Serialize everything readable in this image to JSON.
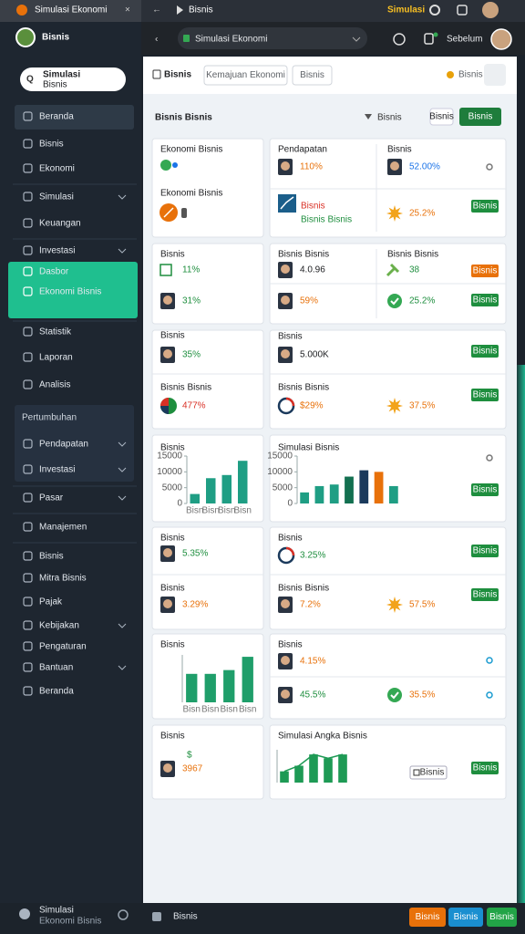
{
  "browser": {
    "tab": "Simulasi Ekonomi",
    "tab2": "Bisnis",
    "badge": "Simulasi",
    "address": "Simulasi Ekonomi",
    "account": "Sebelum"
  },
  "sidebar": {
    "brand": "Bisnis",
    "search": [
      "Simulasi",
      "Bisnis"
    ],
    "items": [
      "Beranda",
      "Bisnis",
      "Ekonomi",
      "Simulasi",
      "Keuangan",
      "Investasi",
      "Dasbor",
      "Ekonomi Bisnis",
      "Statistik",
      "Laporan",
      "Analisis",
      "Pertumbuhan",
      "Pendapatan",
      "Investasi",
      "Pasar",
      "Manajemen",
      "Bisnis",
      "Mitra Bisnis",
      "Pajak",
      "Kebijakan",
      "Pengaturan",
      "Bantuan",
      "Beranda"
    ],
    "user": "Simulasi",
    "user_sub": "Ekonomi Bisnis"
  },
  "toolbar": {
    "title": "Bisnis",
    "tabs": [
      "Kemajuan Ekonomi",
      "Bisnis"
    ],
    "status": "Bisnis"
  },
  "header": {
    "title": "Bisnis Bisnis",
    "filter": "Bisnis",
    "actions": [
      "Bisnis",
      "Bisnis"
    ]
  },
  "cards": [
    {
      "labels": [
        {
          "text": "Ekonomi Bisnis"
        },
        {
          "text": "Ekonomi Bisnis"
        }
      ]
    },
    {
      "labels": [
        {
          "text": "Pendapatan"
        },
        {
          "text": "Bisnis"
        },
        {
          "text": "Bisnis",
          "color": "#d93025"
        },
        {
          "text": "Bisnis Bisnis",
          "color": "#1e8e3e"
        }
      ],
      "stats": [
        {
          "value": "110%",
          "color": "#e8710a"
        },
        {
          "value": "52.00%",
          "color": "#1a73e8"
        },
        {
          "value": "25.2%",
          "color": "#e8710a"
        }
      ],
      "buttons": [
        {
          "label": "Bisnis",
          "color": "#1e8e3e"
        }
      ]
    },
    {
      "labels": [
        {
          "text": "Bisnis"
        }
      ],
      "stats": [
        {
          "value": "11%",
          "color": "#1e8e3e"
        },
        {
          "value": "31%",
          "color": "#1e8e3e"
        }
      ]
    },
    {
      "labels": [
        {
          "text": "Bisnis Bisnis"
        },
        {
          "text": "Bisnis Bisnis"
        }
      ],
      "stats": [
        {
          "value": "4.0.96",
          "color": "#202124"
        },
        {
          "value": "38",
          "color": "#1e8e3e"
        },
        {
          "value": "59%",
          "color": "#e8710a"
        },
        {
          "value": "25.2%",
          "color": "#1e8e3e"
        }
      ],
      "buttons": [
        {
          "label": "Bisnis",
          "color": "#e8710a"
        },
        {
          "label": "Bisnis",
          "color": "#1e8e3e"
        }
      ]
    },
    {
      "labels": [
        {
          "text": "Bisnis"
        },
        {
          "text": "Bisnis Bisnis"
        }
      ],
      "stats": [
        {
          "value": "35%",
          "color": "#1e8e3e"
        },
        {
          "value": "477%",
          "color": "#d93025"
        }
      ]
    },
    {
      "labels": [
        {
          "text": "Bisnis"
        },
        {
          "text": "Bisnis Bisnis"
        }
      ],
      "stats": [
        {
          "value": "5.000K",
          "color": "#202124"
        },
        {
          "value": "$29%",
          "color": "#e8710a"
        },
        {
          "value": "37.5%",
          "color": "#e8710a"
        }
      ],
      "buttons": [
        {
          "label": "Bisnis",
          "color": "#1e8e3e"
        },
        {
          "label": "Bisnis",
          "color": "#1e8e3e"
        }
      ]
    },
    {
      "labels": [
        {
          "text": "Bisnis"
        }
      ],
      "chart": {
        "type": "bar",
        "categories": [
          "Bisn",
          "Bisn",
          "Bisn",
          "Bisn"
        ],
        "values": [
          3000,
          8000,
          9000,
          13500
        ],
        "color": "#1f9e84",
        "ylim": [
          0,
          15000
        ],
        "yticks": [
          0,
          5000,
          10000,
          15000
        ]
      }
    },
    {
      "labels": [
        {
          "text": "Simulasi Bisnis"
        }
      ],
      "chart": {
        "type": "bar",
        "values": [
          3500,
          5500,
          6000,
          8500,
          10500,
          10000,
          5500
        ],
        "colors": [
          "#1f9e84",
          "#1f9e84",
          "#1f9e84",
          "#137050",
          "#1b3a5c",
          "#e8710a",
          "#1f9e84"
        ],
        "ylim": [
          0,
          15000
        ],
        "yticks": [
          0,
          5000,
          10000,
          15000
        ]
      },
      "buttons": [
        {
          "label": "Bisnis",
          "color": "#1e8e3e"
        }
      ]
    },
    {
      "labels": [
        {
          "text": "Bisnis"
        },
        {
          "text": "Bisnis"
        }
      ],
      "stats": [
        {
          "value": "5.35%",
          "color": "#1e8e3e"
        },
        {
          "value": "3.29%",
          "color": "#e8710a"
        }
      ]
    },
    {
      "labels": [
        {
          "text": "Bisnis"
        },
        {
          "text": "Bisnis Bisnis"
        }
      ],
      "stats": [
        {
          "value": "3.25%",
          "color": "#1e8e3e"
        },
        {
          "value": "7.2%",
          "color": "#e8710a"
        },
        {
          "value": "57.5%",
          "color": "#e8710a"
        }
      ],
      "buttons": [
        {
          "label": "Bisnis",
          "color": "#1e8e3e"
        },
        {
          "label": "Bisnis",
          "color": "#1e8e3e"
        }
      ]
    },
    {
      "labels": [
        {
          "text": "Bisnis"
        }
      ],
      "chart": {
        "type": "bar",
        "categories": [
          "Bisn",
          "Bisn",
          "Bisn",
          "Bisn"
        ],
        "values": [
          30,
          30,
          34,
          48
        ],
        "color": "#1f9e6a",
        "ylim": [
          0,
          50
        ]
      }
    },
    {
      "labels": [
        {
          "text": "Bisnis"
        }
      ],
      "stats": [
        {
          "value": "4.15%",
          "color": "#e8710a"
        },
        {
          "value": "45.5%",
          "color": "#1e8e3e"
        },
        {
          "value": "35.5%",
          "color": "#e8710a"
        }
      ]
    },
    {
      "labels": [
        {
          "text": "Bisnis"
        },
        {
          "text": "$",
          "color": "#1e8e3e"
        }
      ],
      "stats": [
        {
          "value": "3967",
          "color": "#e8710a"
        }
      ]
    },
    {
      "labels": [
        {
          "text": "Simulasi Angka Bisnis"
        }
      ],
      "chart": {
        "type": "bar",
        "values": [
          12,
          18,
          30,
          26,
          30
        ],
        "color": "#1e9a55",
        "ylim": [
          0,
          35
        ],
        "line": true
      },
      "buttons": [
        {
          "label": "Bisnis",
          "color": "#ffffff"
        },
        {
          "label": "Bisnis",
          "color": "#1e8e3e"
        }
      ]
    }
  ],
  "footer": {
    "label": "Bisnis",
    "buttons": [
      {
        "label": "Bisnis",
        "color": "#e8710a"
      },
      {
        "label": "Bisnis",
        "color": "#1a8fd0"
      },
      {
        "label": "Bisnis",
        "color": "#22a447"
      }
    ]
  }
}
